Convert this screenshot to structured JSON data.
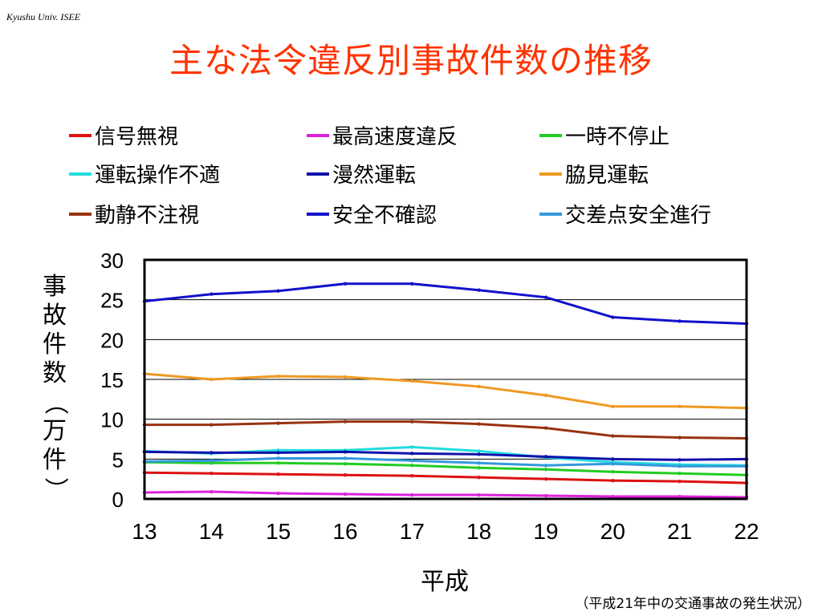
{
  "header_note": "Kyushu Univ. ISEE",
  "title": "主な法令違反別事故件数の推移",
  "source_note": "（平成21年中の交通事故の発生状況）",
  "chart_data": {
    "type": "line",
    "title": "主な法令違反別事故件数の推移",
    "xlabel": "平成",
    "ylabel": "事故件数（万件）",
    "categories": [
      "13",
      "14",
      "15",
      "16",
      "17",
      "18",
      "19",
      "20",
      "21",
      "22"
    ],
    "ylim": [
      0,
      30
    ],
    "yticks": [
      "0",
      "5",
      "10",
      "15",
      "20",
      "25",
      "30"
    ],
    "grid": true,
    "legend_placement": "top",
    "series": [
      {
        "name": "信号無視",
        "color": "#dd1111",
        "values": [
          3.3,
          3.2,
          3.1,
          3.0,
          2.9,
          2.7,
          2.5,
          2.3,
          2.2,
          2.0
        ]
      },
      {
        "name": "最高速度違反",
        "color": "#dd22dd",
        "values": [
          0.8,
          0.9,
          0.7,
          0.6,
          0.5,
          0.5,
          0.4,
          0.3,
          0.3,
          0.2
        ]
      },
      {
        "name": "一時不停止",
        "color": "#22cc22",
        "values": [
          4.6,
          4.5,
          4.5,
          4.4,
          4.2,
          3.9,
          3.7,
          3.4,
          3.2,
          3.0
        ]
      },
      {
        "name": "運転操作不適",
        "color": "#22dddd",
        "values": [
          6.0,
          5.7,
          6.1,
          6.1,
          6.5,
          6.0,
          5.2,
          4.6,
          4.3,
          4.2
        ]
      },
      {
        "name": "漫然運転",
        "color": "#1111aa",
        "values": [
          5.9,
          5.8,
          5.8,
          5.9,
          5.7,
          5.6,
          5.3,
          5.0,
          4.9,
          5.0
        ]
      },
      {
        "name": "脇見運転",
        "color": "#ee9922",
        "values": [
          15.7,
          15.0,
          15.4,
          15.3,
          14.8,
          14.1,
          13.0,
          11.6,
          11.6,
          11.4
        ]
      },
      {
        "name": "動静不注視",
        "color": "#993311",
        "values": [
          9.3,
          9.3,
          9.5,
          9.7,
          9.7,
          9.4,
          8.9,
          7.9,
          7.7,
          7.6
        ]
      },
      {
        "name": "安全不確認",
        "color": "#1111cc",
        "values": [
          24.8,
          25.7,
          26.1,
          27.0,
          27.0,
          26.2,
          25.3,
          22.8,
          22.3,
          22.0
        ]
      },
      {
        "name": "交差点安全進行",
        "color": "#3399dd",
        "values": [
          4.7,
          4.8,
          5.1,
          5.1,
          4.8,
          4.5,
          4.2,
          4.4,
          4.1,
          4.1
        ]
      }
    ]
  }
}
